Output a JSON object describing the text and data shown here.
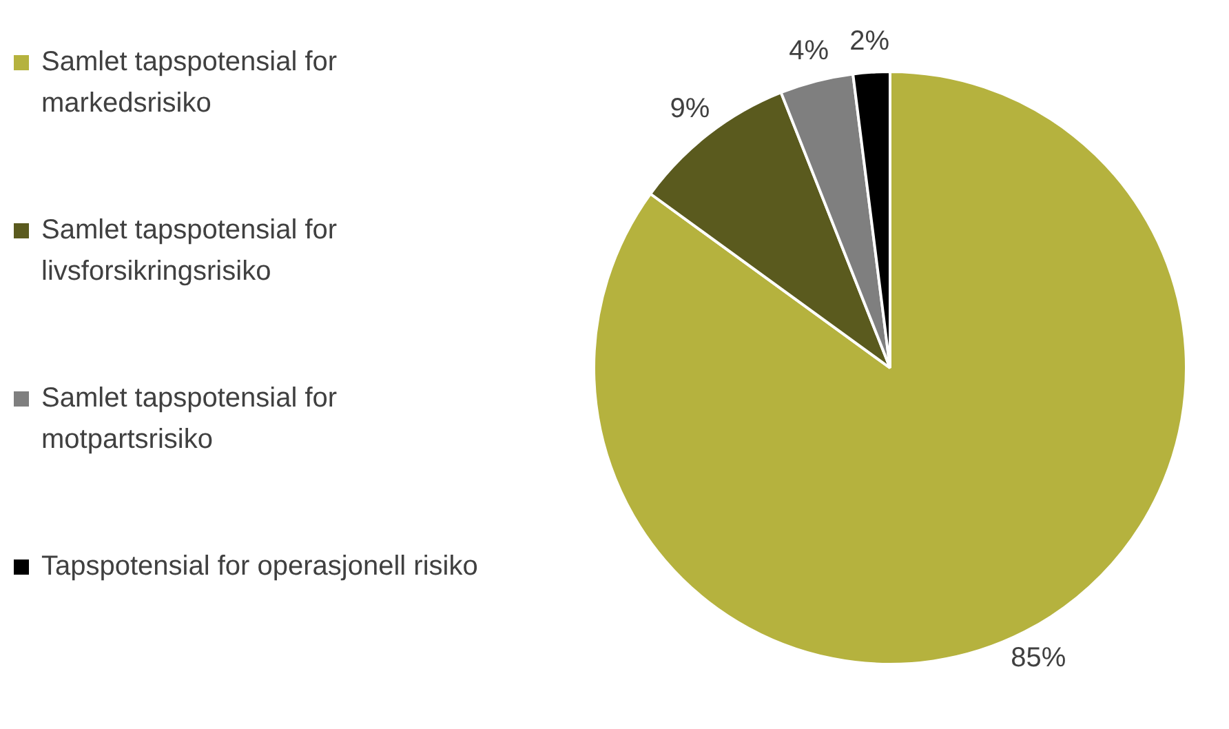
{
  "chart_data": {
    "type": "pie",
    "categories": [
      "Samlet tapspotensial for markedsrisiko",
      "Samlet tapspotensial for livsforsikringsrisiko",
      "Samlet tapspotensial for motpartsrisiko",
      "Tapspotensial for operasjonell risiko"
    ],
    "values": [
      85,
      9,
      4,
      2
    ],
    "colors": [
      "#b5b23e",
      "#5a5a1e",
      "#7f7f7f",
      "#000000"
    ],
    "value_labels": [
      "85%",
      "9%",
      "4%",
      "2%"
    ],
    "legend": "left"
  }
}
